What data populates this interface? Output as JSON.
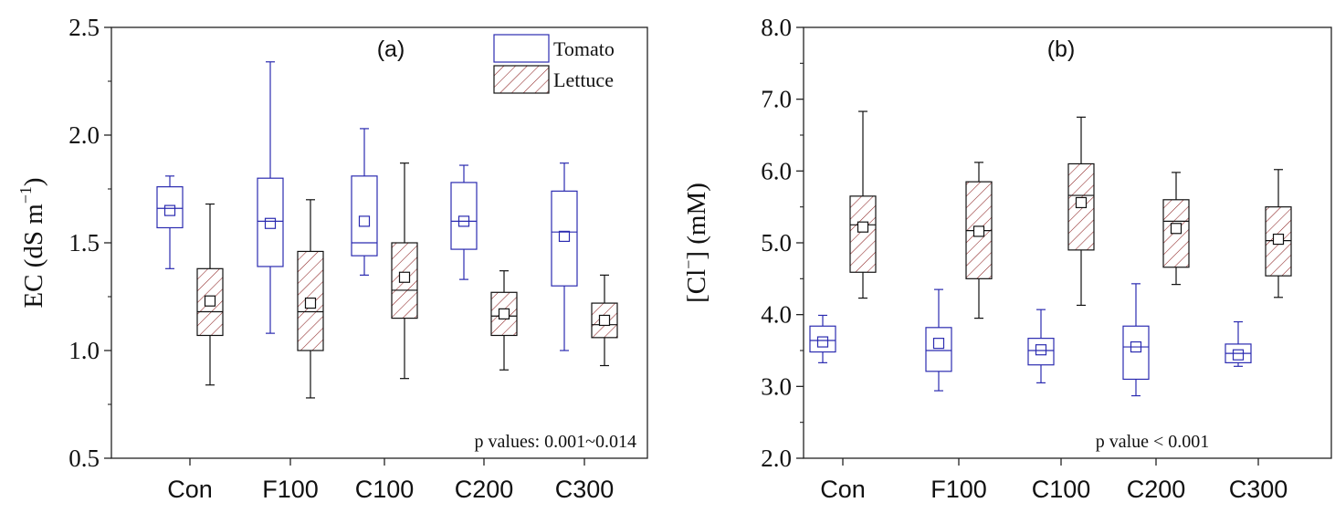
{
  "chart_data": [
    {
      "type": "box",
      "panel_label": "(a)",
      "ylabel_main": "EC (dS m",
      "ylabel_sup": "−1",
      "ylabel_end": ")",
      "ylim": [
        0.5,
        2.5
      ],
      "yticks": [
        0.5,
        1.0,
        1.5,
        2.0,
        2.5
      ],
      "ytick_labels": [
        "0.5",
        "1.0",
        "1.5",
        "2.0",
        "2.5"
      ],
      "categories": [
        "Con",
        "F100",
        "C100",
        "C200",
        "C300"
      ],
      "annotation": "p values: 0.001~0.014",
      "legend_position": "top-right",
      "series": [
        {
          "name": "Tomato",
          "color": "#2b2bb0",
          "fill": "none",
          "boxes": [
            {
              "whisker_low": 1.38,
              "q1": 1.57,
              "median": 1.66,
              "mean": 1.65,
              "q3": 1.76,
              "whisker_high": 1.81
            },
            {
              "whisker_low": 1.08,
              "q1": 1.39,
              "median": 1.6,
              "mean": 1.59,
              "q3": 1.8,
              "whisker_high": 2.34
            },
            {
              "whisker_low": 1.35,
              "q1": 1.44,
              "median": 1.5,
              "mean": 1.6,
              "q3": 1.81,
              "whisker_high": 2.03
            },
            {
              "whisker_low": 1.33,
              "q1": 1.47,
              "median": 1.6,
              "mean": 1.6,
              "q3": 1.78,
              "whisker_high": 1.86
            },
            {
              "whisker_low": 1.0,
              "q1": 1.3,
              "median": 1.55,
              "mean": 1.53,
              "q3": 1.74,
              "whisker_high": 1.87
            }
          ]
        },
        {
          "name": "Lettuce",
          "color": "#111111",
          "fill": "hatch",
          "hatch_color": "#8b2020",
          "boxes": [
            {
              "whisker_low": 0.84,
              "q1": 1.07,
              "median": 1.18,
              "mean": 1.23,
              "q3": 1.38,
              "whisker_high": 1.68
            },
            {
              "whisker_low": 0.78,
              "q1": 1.0,
              "median": 1.18,
              "mean": 1.22,
              "q3": 1.46,
              "whisker_high": 1.7
            },
            {
              "whisker_low": 0.87,
              "q1": 1.15,
              "median": 1.28,
              "mean": 1.34,
              "q3": 1.5,
              "whisker_high": 1.87
            },
            {
              "whisker_low": 0.91,
              "q1": 1.07,
              "median": 1.16,
              "mean": 1.17,
              "q3": 1.27,
              "whisker_high": 1.37
            },
            {
              "whisker_low": 0.93,
              "q1": 1.06,
              "median": 1.12,
              "mean": 1.14,
              "q3": 1.22,
              "whisker_high": 1.35
            }
          ]
        }
      ]
    },
    {
      "type": "box",
      "panel_label": "(b)",
      "ylabel_main": "[Cl",
      "ylabel_sup": "−",
      "ylabel_end": "] (mM)",
      "ylim": [
        2.0,
        8.0
      ],
      "yticks": [
        2.0,
        3.0,
        4.0,
        5.0,
        6.0,
        7.0,
        8.0
      ],
      "ytick_labels": [
        "2.0",
        "3.0",
        "4.0",
        "5.0",
        "6.0",
        "7.0",
        "8.0"
      ],
      "categories": [
        "Con",
        "F100",
        "C100",
        "C200",
        "C300"
      ],
      "annotation": "p value < 0.001",
      "series": [
        {
          "name": "Tomato",
          "color": "#2b2bb0",
          "fill": "none",
          "boxes": [
            {
              "whisker_low": 3.33,
              "q1": 3.48,
              "median": 3.64,
              "mean": 3.62,
              "q3": 3.84,
              "whisker_high": 3.99
            },
            {
              "whisker_low": 2.94,
              "q1": 3.21,
              "median": 3.5,
              "mean": 3.6,
              "q3": 3.82,
              "whisker_high": 4.35
            },
            {
              "whisker_low": 3.05,
              "q1": 3.3,
              "median": 3.5,
              "mean": 3.51,
              "q3": 3.67,
              "whisker_high": 4.07
            },
            {
              "whisker_low": 2.87,
              "q1": 3.1,
              "median": 3.55,
              "mean": 3.55,
              "q3": 3.84,
              "whisker_high": 4.43
            },
            {
              "whisker_low": 3.28,
              "q1": 3.33,
              "median": 3.46,
              "mean": 3.44,
              "q3": 3.59,
              "whisker_high": 3.9
            }
          ]
        },
        {
          "name": "Lettuce",
          "color": "#111111",
          "fill": "hatch",
          "hatch_color": "#8b2020",
          "boxes": [
            {
              "whisker_low": 4.23,
              "q1": 4.59,
              "median": 5.25,
              "mean": 5.22,
              "q3": 5.65,
              "whisker_high": 6.83
            },
            {
              "whisker_low": 3.95,
              "q1": 4.5,
              "median": 5.17,
              "mean": 5.16,
              "q3": 5.85,
              "whisker_high": 6.12
            },
            {
              "whisker_low": 4.13,
              "q1": 4.9,
              "median": 5.66,
              "mean": 5.56,
              "q3": 6.1,
              "whisker_high": 6.75
            },
            {
              "whisker_low": 4.42,
              "q1": 4.66,
              "median": 5.3,
              "mean": 5.2,
              "q3": 5.6,
              "whisker_high": 5.98
            },
            {
              "whisker_low": 4.24,
              "q1": 4.54,
              "median": 5.03,
              "mean": 5.05,
              "q3": 5.5,
              "whisker_high": 6.02
            }
          ]
        }
      ]
    }
  ]
}
